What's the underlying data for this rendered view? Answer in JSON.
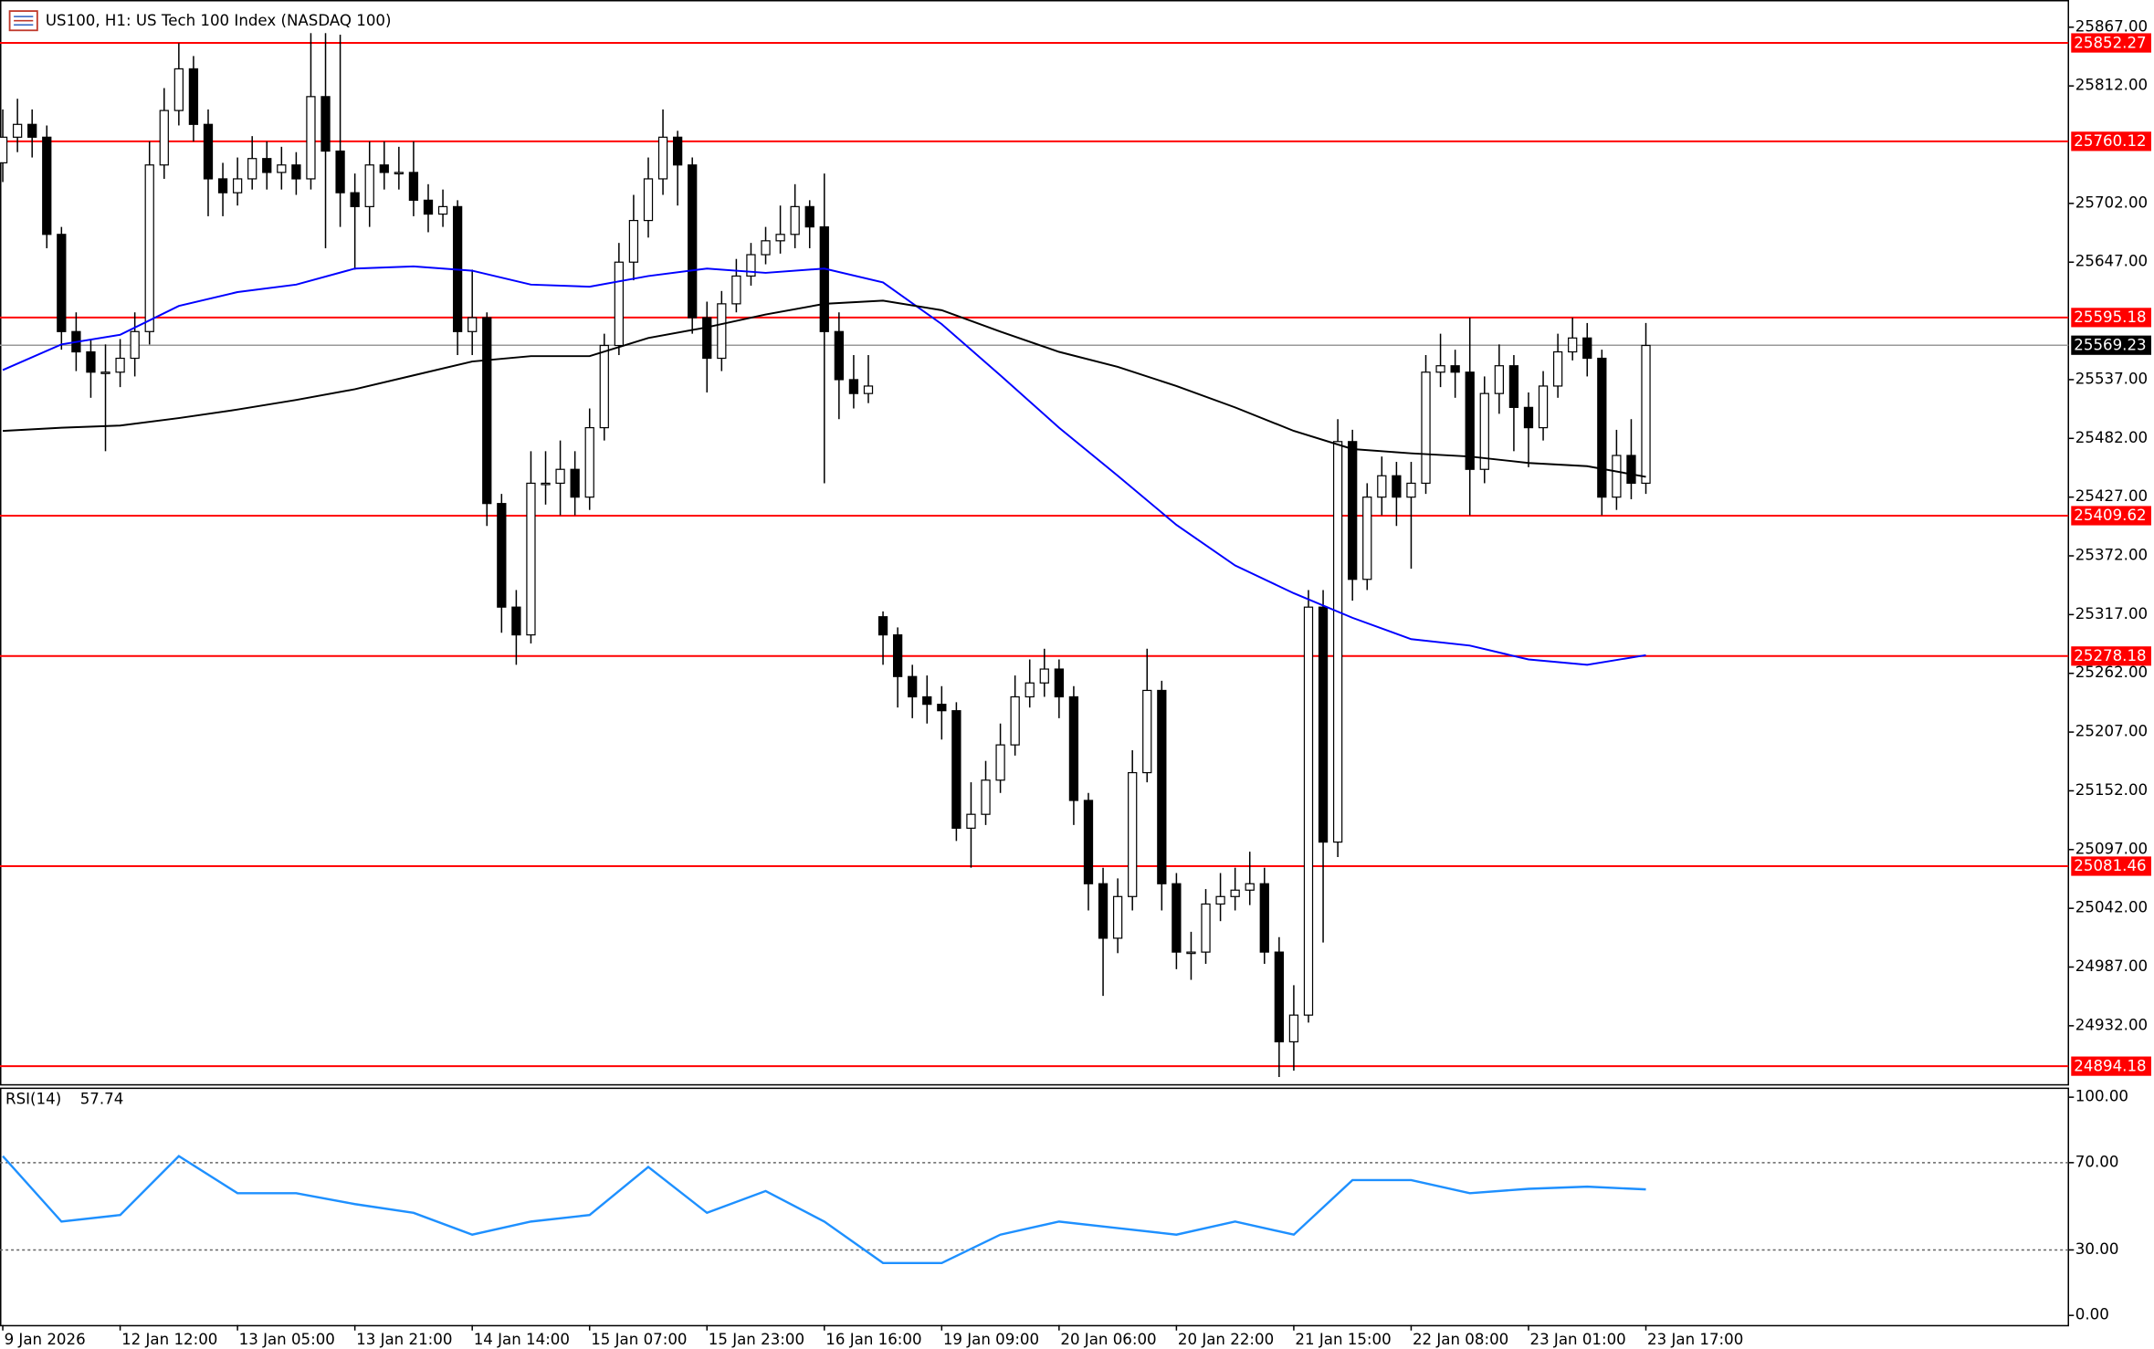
{
  "chart_data": {
    "type": "candlestick",
    "title": "US100, H1:  US Tech 100 Index (NASDAQ 100)",
    "xlim": [
      -0.19,
      140.8
    ],
    "xticks": [
      {
        "value": 0,
        "label": "9 Jan 2026"
      },
      {
        "value": 8,
        "label": "12 Jan 12:00"
      },
      {
        "value": 16,
        "label": "13 Jan 05:00"
      },
      {
        "value": 24,
        "label": "13 Jan 21:00"
      },
      {
        "value": 32,
        "label": "14 Jan 14:00"
      },
      {
        "value": 40,
        "label": "15 Jan 07:00"
      },
      {
        "value": 48,
        "label": "15 Jan 23:00"
      },
      {
        "value": 56,
        "label": "16 Jan 16:00"
      },
      {
        "value": 64,
        "label": "19 Jan 09:00"
      },
      {
        "value": 72,
        "label": "20 Jan 06:00"
      },
      {
        "value": 80,
        "label": "20 Jan 22:00"
      },
      {
        "value": 88,
        "label": "21 Jan 15:00"
      },
      {
        "value": 96,
        "label": "22 Jan 08:00"
      },
      {
        "value": 104,
        "label": "23 Jan 01:00"
      },
      {
        "value": 112,
        "label": "23 Jan 17:00"
      }
    ],
    "ylim": [
      24878,
      25886
    ],
    "yticks": [
      {
        "value": 25867,
        "label": "25867.00"
      },
      {
        "value": 25812,
        "label": "25812.00"
      },
      {
        "value": 25702,
        "label": "25702.00"
      },
      {
        "value": 25647,
        "label": "25647.00"
      },
      {
        "value": 25537,
        "label": "25537.00"
      },
      {
        "value": 25482,
        "label": "25482.00"
      },
      {
        "value": 25427,
        "label": "25427.00"
      },
      {
        "value": 25372,
        "label": "25372.00"
      },
      {
        "value": 25317,
        "label": "25317.00"
      },
      {
        "value": 25262,
        "label": "25262.00"
      },
      {
        "value": 25207,
        "label": "25207.00"
      },
      {
        "value": 25152,
        "label": "25152.00"
      },
      {
        "value": 25097,
        "label": "25097.00"
      },
      {
        "value": 25042,
        "label": "25042.00"
      },
      {
        "value": 24987,
        "label": "24987.00"
      },
      {
        "value": 24932,
        "label": "24932.00"
      }
    ],
    "bull_color": "#ffffff",
    "bear_color": "#000000",
    "open": [
      25740,
      25764,
      25776,
      25764,
      25673,
      25582,
      25563,
      25544,
      25544,
      25557,
      25582,
      25738,
      25789,
      25828,
      25776,
      25725,
      25712,
      25725,
      25744,
      25731,
      25738,
      25725,
      25802,
      25751,
      25712,
      25699,
      25738,
      25731,
      25731,
      25705,
      25692,
      25699,
      25582,
      25595,
      25421,
      25324,
      25298,
      25440,
      25440,
      25453,
      25427,
      25492,
      25569,
      25647,
      25686,
      25725,
      25764,
      25738,
      25595,
      25557,
      25608,
      25634,
      25654,
      25667,
      25673,
      25699,
      25680,
      25582,
      25537,
      25524,
      25315,
      25298,
      25259,
      25240,
      25233,
      25227,
      25117,
      25130,
      25162,
      25195,
      25240,
      25253,
      25266,
      25240,
      25143,
      25065,
      25014,
      25053,
      25169,
      25246,
      25065,
      25001,
      25001,
      25046,
      25053,
      25059,
      25065,
      25001,
      24917,
      24942,
      25324,
      25104,
      25479,
      25350,
      25427,
      25447,
      25427,
      25440,
      25544,
      25550,
      25544,
      25453,
      25524,
      25550,
      25511,
      25492,
      25531,
      25563,
      25576,
      25557,
      25427,
      25466,
      25440
    ],
    "high": [
      25790,
      25800,
      25790,
      25775,
      25680,
      25600,
      25575,
      25570,
      25575,
      25600,
      25760,
      25810,
      25852,
      25840,
      25790,
      25740,
      25745,
      25765,
      25760,
      25755,
      25750,
      25880,
      25880,
      25860,
      25730,
      25760,
      25760,
      25755,
      25760,
      25720,
      25715,
      25705,
      25640,
      25600,
      25430,
      25340,
      25470,
      25470,
      25480,
      25470,
      25510,
      25580,
      25665,
      25710,
      25745,
      25790,
      25770,
      25745,
      25610,
      25620,
      25650,
      25665,
      25680,
      25700,
      25720,
      25705,
      25730,
      25600,
      25560,
      25560,
      25320,
      25305,
      25270,
      25260,
      25250,
      25235,
      25160,
      25180,
      25215,
      25260,
      25275,
      25285,
      25275,
      25250,
      25150,
      25080,
      25070,
      25190,
      25285,
      25255,
      25075,
      25020,
      25060,
      25075,
      25080,
      25095,
      25080,
      25015,
      24970,
      25340,
      25340,
      25500,
      25490,
      25440,
      25465,
      25460,
      25460,
      25560,
      25580,
      25565,
      25595,
      25540,
      25570,
      25560,
      25525,
      25545,
      25580,
      25595,
      25590,
      25565,
      25490,
      25500,
      25590
    ],
    "low": [
      25722,
      25750,
      25745,
      25660,
      25565,
      25545,
      25520,
      25470,
      25530,
      25540,
      25570,
      25725,
      25775,
      25760,
      25690,
      25690,
      25700,
      25715,
      25715,
      25715,
      25710,
      25715,
      25660,
      25680,
      25640,
      25680,
      25715,
      25715,
      25690,
      25675,
      25680,
      25560,
      25560,
      25400,
      25300,
      25270,
      25290,
      25420,
      25410,
      25410,
      25415,
      25480,
      25560,
      25630,
      25670,
      25710,
      25700,
      25580,
      25525,
      25545,
      25600,
      25625,
      25645,
      25655,
      25660,
      25660,
      25440,
      25500,
      25510,
      25515,
      25270,
      25230,
      25220,
      25215,
      25200,
      25105,
      25080,
      25120,
      25150,
      25185,
      25230,
      25240,
      25220,
      25120,
      25040,
      24960,
      25000,
      25040,
      25160,
      25040,
      24985,
      24975,
      24990,
      25030,
      25040,
      25045,
      24990,
      24884,
      24890,
      24935,
      25010,
      25090,
      25330,
      25340,
      25410,
      25400,
      25360,
      25430,
      25530,
      25520,
      25410,
      25440,
      25505,
      25470,
      25455,
      25480,
      25520,
      25555,
      25540,
      25410,
      25415,
      25425,
      25430
    ],
    "close": [
      25764,
      25776,
      25764,
      25673,
      25582,
      25563,
      25544,
      25544,
      25557,
      25582,
      25738,
      25789,
      25828,
      25776,
      25725,
      25712,
      25725,
      25744,
      25731,
      25738,
      25725,
      25802,
      25751,
      25712,
      25699,
      25738,
      25731,
      25731,
      25705,
      25692,
      25699,
      25582,
      25595,
      25421,
      25324,
      25298,
      25440,
      25440,
      25453,
      25427,
      25492,
      25569,
      25647,
      25686,
      25725,
      25764,
      25738,
      25595,
      25557,
      25608,
      25634,
      25654,
      25667,
      25673,
      25699,
      25680,
      25582,
      25537,
      25524,
      25531,
      25298,
      25259,
      25240,
      25233,
      25227,
      25117,
      25130,
      25162,
      25195,
      25240,
      25253,
      25266,
      25240,
      25143,
      25065,
      25014,
      25053,
      25169,
      25246,
      25065,
      25001,
      25001,
      25046,
      25053,
      25059,
      25065,
      25001,
      24917,
      24942,
      25324,
      25104,
      25479,
      25350,
      25427,
      25447,
      25427,
      25440,
      25544,
      25550,
      25544,
      25453,
      25524,
      25550,
      25511,
      25492,
      25531,
      25563,
      25576,
      25557,
      25427,
      25466,
      25440,
      25569
    ],
    "series": [
      {
        "color": "#0000ff",
        "x": [
          0,
          4,
          8,
          12,
          16,
          20,
          24,
          28,
          32,
          36,
          40,
          44,
          48,
          52,
          56,
          60,
          64,
          68,
          72,
          76,
          80,
          84,
          88,
          92,
          96,
          100,
          104,
          108,
          112
        ],
        "values": [
          25546,
          25570,
          25579,
          25606,
          25619,
          25626,
          25641,
          25643,
          25639,
          25626,
          25624,
          25634,
          25641,
          25637,
          25641,
          25628,
          25589,
          25541,
          25492,
          25447,
          25401,
          25363,
          25337,
          25314,
          25294,
          25288,
          25275,
          25270,
          25279
        ]
      },
      {
        "color": "#000000",
        "x": [
          0,
          4,
          8,
          12,
          16,
          20,
          24,
          28,
          32,
          36,
          40,
          44,
          48,
          52,
          56,
          60,
          64,
          68,
          72,
          76,
          80,
          84,
          88,
          92,
          96,
          100,
          104,
          108,
          112
        ],
        "values": [
          25489,
          25492,
          25494,
          25501,
          25509,
          25518,
          25528,
          25541,
          25554,
          25559,
          25559,
          25576,
          25586,
          25598,
          25608,
          25611,
          25602,
          25582,
          25563,
          25549,
          25531,
          25511,
          25489,
          25472,
          25468,
          25465,
          25459,
          25456,
          25446
        ]
      }
    ],
    "levels": {
      "color": "#ff0000",
      "values": [
        25852.27,
        25760.12,
        25595.18,
        25409.62,
        25278.18,
        25081.46,
        24894.18
      ]
    },
    "last_price": 25569.23,
    "rsi": {
      "label": "RSI(14)",
      "value": 57.74,
      "color": "#1e90ff",
      "ylim": [
        -4.4,
        104.4
      ],
      "yticks": [
        {
          "value": 100,
          "label": "100.00"
        },
        {
          "value": 70,
          "label": "70.00"
        },
        {
          "value": 30,
          "label": "30.00"
        },
        {
          "value": 0,
          "label": "0.00"
        }
      ],
      "levels": [
        70,
        30
      ],
      "x": [
        0,
        4,
        8,
        12,
        16,
        20,
        24,
        28,
        32,
        36,
        40,
        44,
        48,
        52,
        56,
        60,
        64,
        68,
        72,
        76,
        80,
        84,
        88,
        92,
        96,
        100,
        104,
        108,
        112
      ],
      "values": [
        73,
        43,
        46,
        73,
        56,
        56,
        51,
        47,
        37,
        43,
        46,
        68,
        47,
        57,
        43,
        24,
        24,
        37,
        43,
        40,
        37,
        43,
        37,
        62,
        62,
        56,
        58,
        59,
        57.74
      ]
    }
  }
}
